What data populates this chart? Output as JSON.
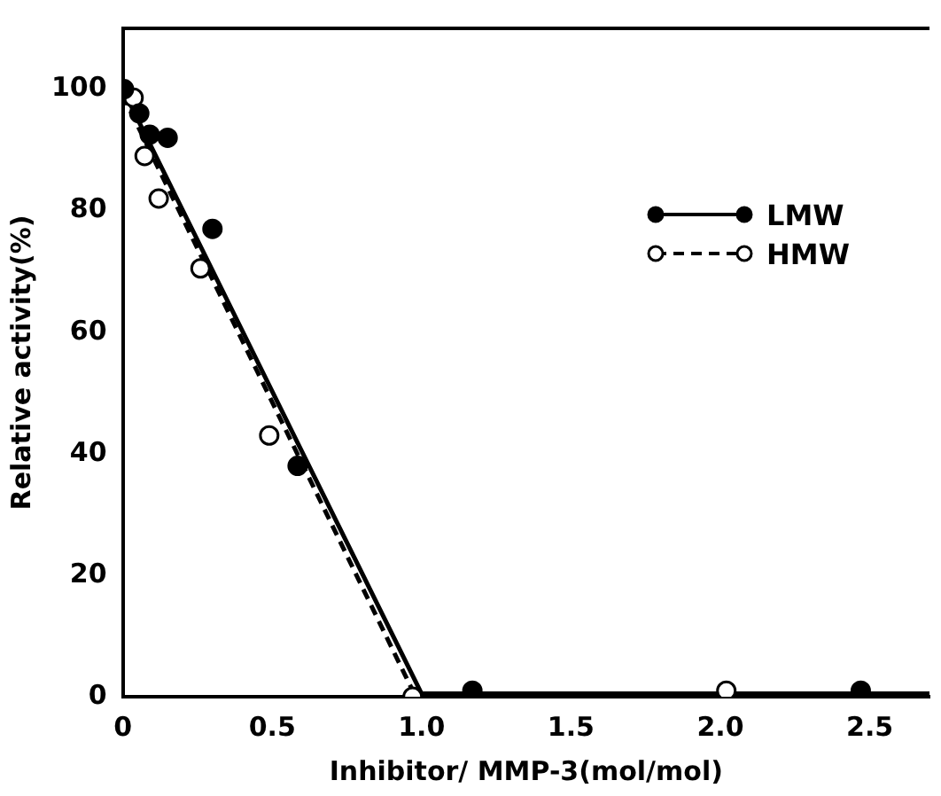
{
  "chart_data": {
    "type": "scatter",
    "xlabel": "Inhibitor/ MMP-3(mol/mol)",
    "ylabel": "Relative activity(%)",
    "xlim": [
      0,
      2.7
    ],
    "xticks": [
      {
        "value": 0,
        "label": "0"
      },
      {
        "value": 0.5,
        "label": "0.5"
      },
      {
        "value": 1,
        "label": "1.0"
      },
      {
        "value": 1.5,
        "label": "1.5"
      },
      {
        "value": 2,
        "label": "2.0"
      },
      {
        "value": 2.5,
        "label": "2.5"
      }
    ],
    "ylim": [
      0,
      110
    ],
    "yticks": [
      0,
      20,
      40,
      60,
      80,
      100
    ],
    "grid": false,
    "legend": "right",
    "marker": "circle",
    "series": [
      {
        "name": "LMW",
        "color": "#000000",
        "line_style": "solid",
        "x": [
          0.004,
          0.055,
          0.09,
          0.15,
          0.3,
          0.585,
          1.17,
          2.47
        ],
        "values": [
          100,
          96,
          92.5,
          92,
          77,
          38,
          1,
          1
        ]
      },
      {
        "name": "HMW",
        "color": "#000000",
        "line_style": "dashed",
        "x": [
          0.036,
          0.073,
          0.12,
          0.26,
          0.49,
          0.97,
          2.02
        ],
        "values": [
          98.6,
          89,
          82,
          70.5,
          43,
          0,
          1
        ]
      },
      {
        "type": "line",
        "marker": "none",
        "color": "#000000",
        "line_style": "solid",
        "x": [
          0,
          1.0,
          2.7
        ],
        "values": [
          100,
          0.5,
          0.5
        ]
      },
      {
        "type": "line",
        "marker": "none",
        "color": "#000000",
        "line_style": "dashed",
        "x": [
          0,
          0.98,
          2.7
        ],
        "values": [
          99,
          0,
          0
        ]
      }
    ]
  }
}
